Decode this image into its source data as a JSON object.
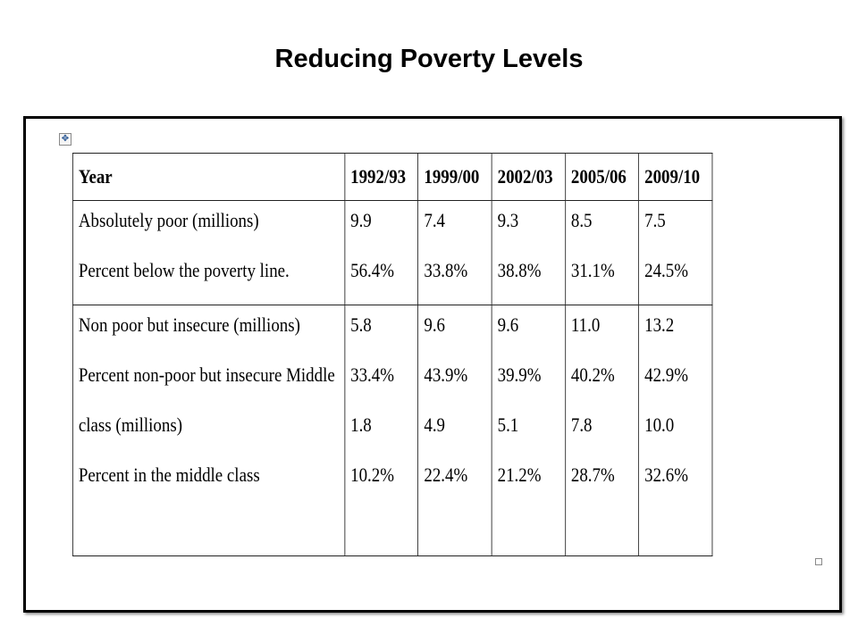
{
  "slide": {
    "title": "Reducing Poverty Levels"
  },
  "table": {
    "headers": [
      "Year",
      "1992/93",
      "1999/00",
      "2002/03",
      "2005/06",
      "2009/10"
    ],
    "groups": [
      {
        "labels": [
          "Absolutely poor (millions)",
          "Percent below the poverty line."
        ],
        "columns": [
          [
            "9.9",
            "56.4%"
          ],
          [
            "7.4",
            "33.8%"
          ],
          [
            "9.3",
            "38.8%"
          ],
          [
            "8.5",
            "31.1%"
          ],
          [
            "7.5",
            "24.5%"
          ]
        ]
      },
      {
        "labels": [
          "Non poor but insecure  (millions)",
          "Percent non-poor but insecure  Middle",
          "class (millions)",
          "Percent in the middle class"
        ],
        "columns": [
          [
            "5.8",
            "33.4%",
            "1.8",
            "10.2%"
          ],
          [
            "9.6",
            "43.9%",
            "4.9",
            "22.4%"
          ],
          [
            "9.6",
            "39.9%",
            "5.1",
            "21.2%"
          ],
          [
            "11.0",
            "40.2%",
            "7.8",
            "28.7%"
          ],
          [
            "13.2",
            "42.9%",
            "10.0",
            "32.6%"
          ]
        ]
      }
    ]
  }
}
